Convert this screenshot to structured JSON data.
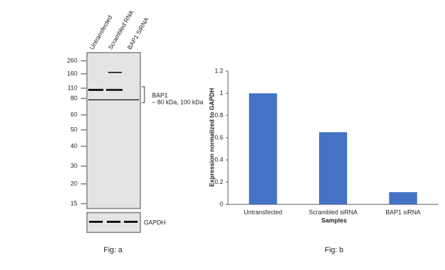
{
  "blot": {
    "lanes": [
      "Untransfected",
      "Scrambled RNA",
      "BAP1 SiRNA"
    ],
    "markers": [
      260,
      160,
      110,
      80,
      60,
      50,
      40,
      30,
      20,
      15
    ],
    "band_label": "BAP1",
    "band_size": "~ 80 kDa, 100 kDa",
    "loading_control": "GAPDH",
    "caption": "Fig: a"
  },
  "chart_data": {
    "type": "bar",
    "categories": [
      "Untransfected",
      "Scrambled siRNA",
      "BAP1 siRNA"
    ],
    "values": [
      1,
      0.65,
      0.11
    ],
    "color": "#4472c4",
    "ylim": [
      0,
      1.2
    ],
    "yticks": [
      0,
      0.2,
      0.4,
      0.6,
      0.8,
      1,
      1.2
    ],
    "ylabel": "Expression normalized to GAPDH",
    "xlabel": "Samples",
    "caption": "Fig: b"
  }
}
